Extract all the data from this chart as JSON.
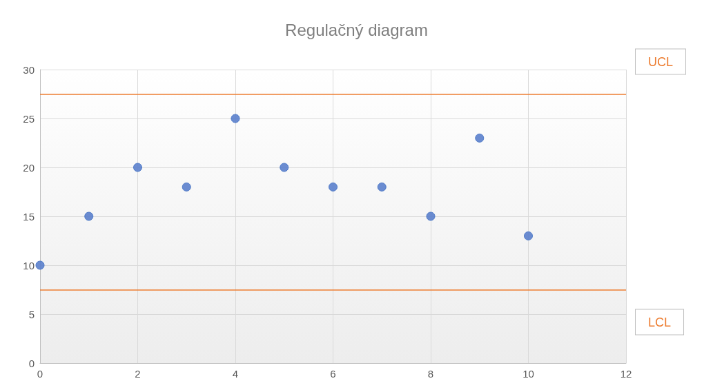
{
  "chart_data": {
    "type": "scatter",
    "title": "Regulačný diagram",
    "x": [
      0,
      1,
      2,
      3,
      4,
      5,
      6,
      7,
      8,
      9,
      10
    ],
    "values": [
      10,
      15,
      20,
      18,
      25,
      20,
      18,
      18,
      15,
      23,
      13
    ],
    "color": "#5b80cc",
    "marker": "circle",
    "xlim": [
      0,
      12
    ],
    "xticks": [
      0,
      2,
      4,
      6,
      8,
      10,
      12
    ],
    "ylim": [
      0,
      30
    ],
    "yticks": [
      0,
      5,
      10,
      15,
      20,
      25,
      30
    ],
    "grid": true,
    "ref_lines": [
      {
        "axis": "y",
        "value": 27.5,
        "label": "UCL",
        "color": "#ed7d31"
      },
      {
        "axis": "y",
        "value": 7.5,
        "label": "LCL",
        "color": "#ed7d31"
      }
    ]
  }
}
